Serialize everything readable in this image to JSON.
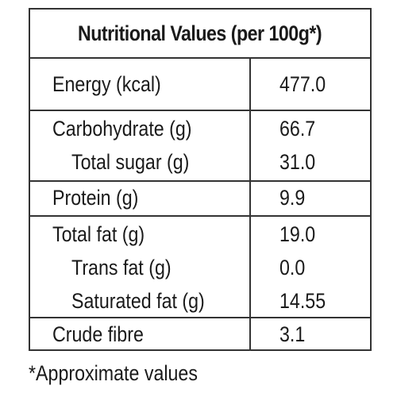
{
  "panel": {
    "title": "Nutritional Values (per 100g*)"
  },
  "groups": [
    {
      "rows": [
        {
          "label": "Energy (kcal)",
          "value": "477.0",
          "indent": false
        }
      ]
    },
    {
      "rows": [
        {
          "label": "Carbohydrate (g)",
          "value": "66.7",
          "indent": false
        },
        {
          "label": "Total sugar (g)",
          "value": "31.0",
          "indent": true
        }
      ]
    },
    {
      "rows": [
        {
          "label": "Protein (g)",
          "value": "9.9",
          "indent": false
        }
      ]
    },
    {
      "rows": [
        {
          "label": "Total fat (g)",
          "value": "19.0",
          "indent": false
        },
        {
          "label": "Trans fat (g)",
          "value": "0.0",
          "indent": true
        },
        {
          "label": "Saturated fat (g)",
          "value": "14.55",
          "indent": true
        }
      ]
    },
    {
      "rows": [
        {
          "label": "Crude fibre",
          "value": "3.1",
          "indent": false
        }
      ]
    }
  ],
  "footnote": "*Approximate values"
}
